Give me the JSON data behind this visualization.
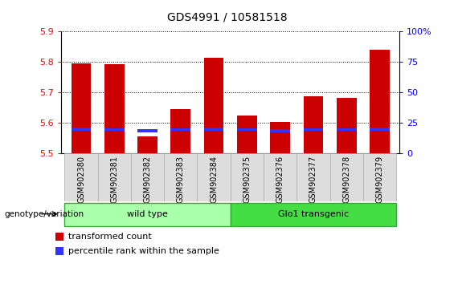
{
  "title": "GDS4991 / 10581518",
  "samples": [
    "GSM902380",
    "GSM902381",
    "GSM902382",
    "GSM902383",
    "GSM902384",
    "GSM902375",
    "GSM902376",
    "GSM902377",
    "GSM902378",
    "GSM902379"
  ],
  "transformed_counts": [
    5.795,
    5.793,
    5.555,
    5.645,
    5.814,
    5.623,
    5.603,
    5.687,
    5.683,
    5.84
  ],
  "blue_bar_positions": [
    5.575,
    5.573,
    5.57,
    5.573,
    5.575,
    5.573,
    5.57,
    5.573,
    5.573,
    5.575
  ],
  "blue_bar_height": 0.01,
  "ymin": 5.5,
  "ymax": 5.9,
  "yticks": [
    5.5,
    5.6,
    5.7,
    5.8,
    5.9
  ],
  "right_yticks": [
    0,
    25,
    50,
    75,
    100
  ],
  "bar_color_red": "#cc0000",
  "bar_color_blue": "#3333ff",
  "bar_width": 0.6,
  "groups": [
    {
      "label": "wild type",
      "indices": [
        0,
        1,
        2,
        3,
        4
      ],
      "color": "#aaffaa",
      "edge_color": "#33aa33"
    },
    {
      "label": "Glo1 transgenic",
      "indices": [
        5,
        6,
        7,
        8,
        9
      ],
      "color": "#44dd44",
      "edge_color": "#33aa33"
    }
  ],
  "group_label": "genotype/variation",
  "legend_items": [
    {
      "label": "transformed count",
      "color": "#cc0000"
    },
    {
      "label": "percentile rank within the sample",
      "color": "#3333ff"
    }
  ],
  "tick_bg_color": "#dddddd",
  "tick_edge_color": "#aaaaaa",
  "title_fontsize": 10,
  "tick_label_fontsize": 7,
  "ytick_fontsize": 8,
  "legend_fontsize": 8
}
